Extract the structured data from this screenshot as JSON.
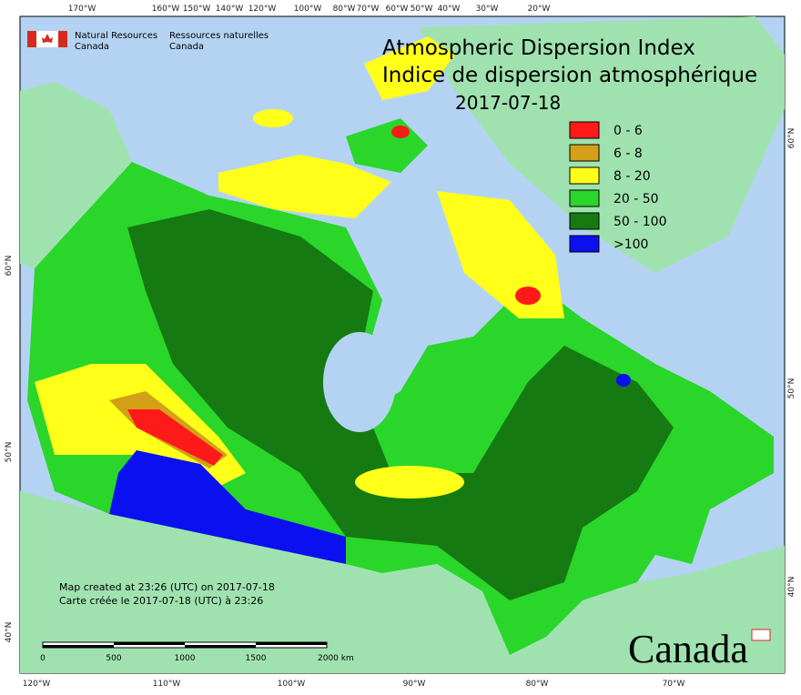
{
  "header": {
    "agency_en": [
      "Natural Resources",
      "Canada"
    ],
    "agency_fr": [
      "Ressources naturelles",
      "Canada"
    ]
  },
  "title": [
    "Atmospheric Dispersion Index",
    "Indice de dispersion atmosphérique",
    "2017-07-18"
  ],
  "legend": [
    {
      "label": "0 - 6",
      "color": "#ff1a1a"
    },
    {
      "label": "6 - 8",
      "color": "#d4a017"
    },
    {
      "label": "8 - 20",
      "color": "#ffff1a"
    },
    {
      "label": "20 - 50",
      "color": "#2ad62a"
    },
    {
      "label": "50 - 100",
      "color": "#167a12"
    },
    {
      "label": ">100",
      "color": "#0a10f0"
    }
  ],
  "graticule": {
    "top": [
      "170°W",
      "160°W",
      "150°W",
      "140°W",
      "120°W",
      "100°W",
      "80°W",
      "70°W",
      "60°W",
      "50°W",
      "40°W",
      "30°W",
      "20°W"
    ],
    "bottom": [
      "120°W",
      "110°W",
      "100°W",
      "90°W",
      "80°W",
      "70°W"
    ],
    "left": [
      "60°N",
      "50°N",
      "40°N"
    ],
    "right": [
      "60°N",
      "50°N",
      "40°N"
    ]
  },
  "footer": [
    "Map created at 23:26 (UTC) on 2017-07-18",
    "Carte créée le 2017-07-18 (UTC) à 23:26"
  ],
  "scale_bar": [
    "0",
    "500",
    "1000",
    "1500",
    "2000 km"
  ],
  "wordmark": "Canada"
}
